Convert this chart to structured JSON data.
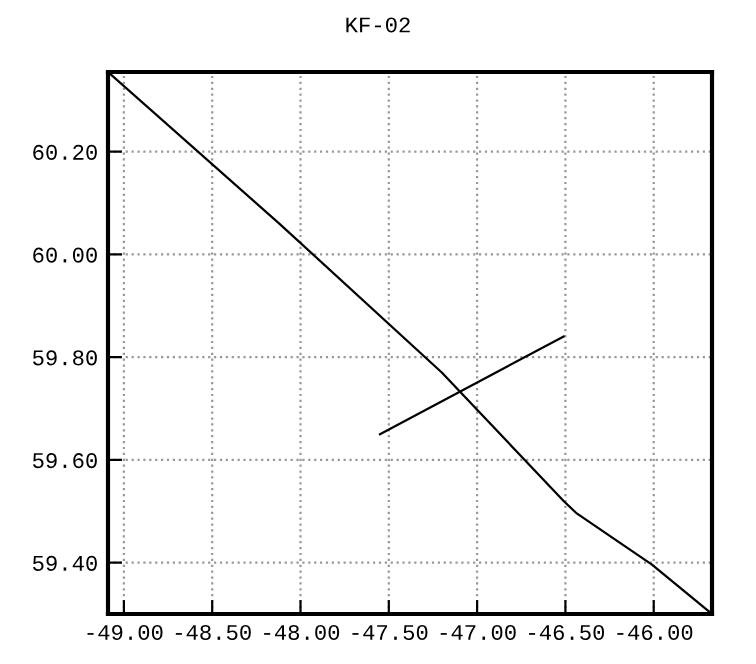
{
  "chart_data": {
    "type": "line",
    "title": "KF-02",
    "series": [
      {
        "color": "#000000",
        "x": [
          -49.09,
          -48.12,
          -47.2,
          -46.51,
          -46.44,
          -46.01,
          -45.67
        ],
        "values": [
          60.355,
          60.06,
          59.77,
          59.52,
          59.497,
          59.396,
          59.3
        ]
      },
      {
        "color": "#000000",
        "x": [
          -47.55,
          -46.84,
          -46.51
        ],
        "values": [
          59.65,
          59.78,
          59.84
        ]
      }
    ],
    "xlim": [
      -49.09,
      -45.67
    ],
    "ylim": [
      59.3,
      60.355
    ],
    "xticks": [
      {
        "value": -49,
        "label": "-49.00"
      },
      {
        "value": -48.5,
        "label": "-48.50"
      },
      {
        "value": -48,
        "label": "-48.00"
      },
      {
        "value": -47.5,
        "label": "-47.50"
      },
      {
        "value": -47,
        "label": "-47.00"
      },
      {
        "value": -46.5,
        "label": "-46.50"
      },
      {
        "value": -46,
        "label": "-46.00"
      }
    ],
    "yticks": [
      {
        "value": 59.4,
        "label": "59.40"
      },
      {
        "value": 59.6,
        "label": "59.60"
      },
      {
        "value": 59.8,
        "label": "59.80"
      },
      {
        "value": 60,
        "label": "60.00"
      },
      {
        "value": 60.2,
        "label": "60.20"
      }
    ],
    "grid": true,
    "marker": "none",
    "line_style": "solid"
  }
}
